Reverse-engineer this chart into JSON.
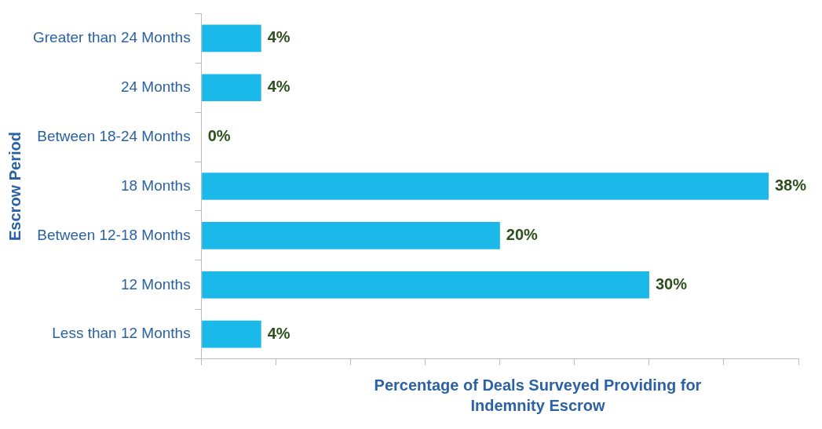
{
  "chart_data": {
    "type": "bar",
    "orientation": "horizontal",
    "xlabel": "Percentage of Deals Surveyed Providing for Indemnity Escrow",
    "ylabel": "Escrow Period",
    "categories": [
      "Greater than 24 Months",
      "24 Months",
      "Between 18-24 Months",
      "18 Months",
      "Between 12-18 Months",
      "12 Months",
      "Less than 12 Months"
    ],
    "values": [
      4,
      4,
      0,
      38,
      20,
      30,
      4
    ],
    "color": "#1bb9ea",
    "value_labels": [
      "4%",
      "4%",
      "0%",
      "38%",
      "20%",
      "30%",
      "4%"
    ],
    "xlim": [
      0,
      40
    ],
    "xticks": [
      {
        "value": 0,
        "label": null
      },
      {
        "value": 5,
        "label": null
      },
      {
        "value": 10,
        "label": null
      },
      {
        "value": 15,
        "label": null
      },
      {
        "value": 20,
        "label": null
      },
      {
        "value": 25,
        "label": null
      },
      {
        "value": 30,
        "label": null
      },
      {
        "value": 35,
        "label": null
      },
      {
        "value": 40,
        "label": null
      }
    ],
    "tick_labels": "y",
    "grid": false,
    "legend": false
  }
}
